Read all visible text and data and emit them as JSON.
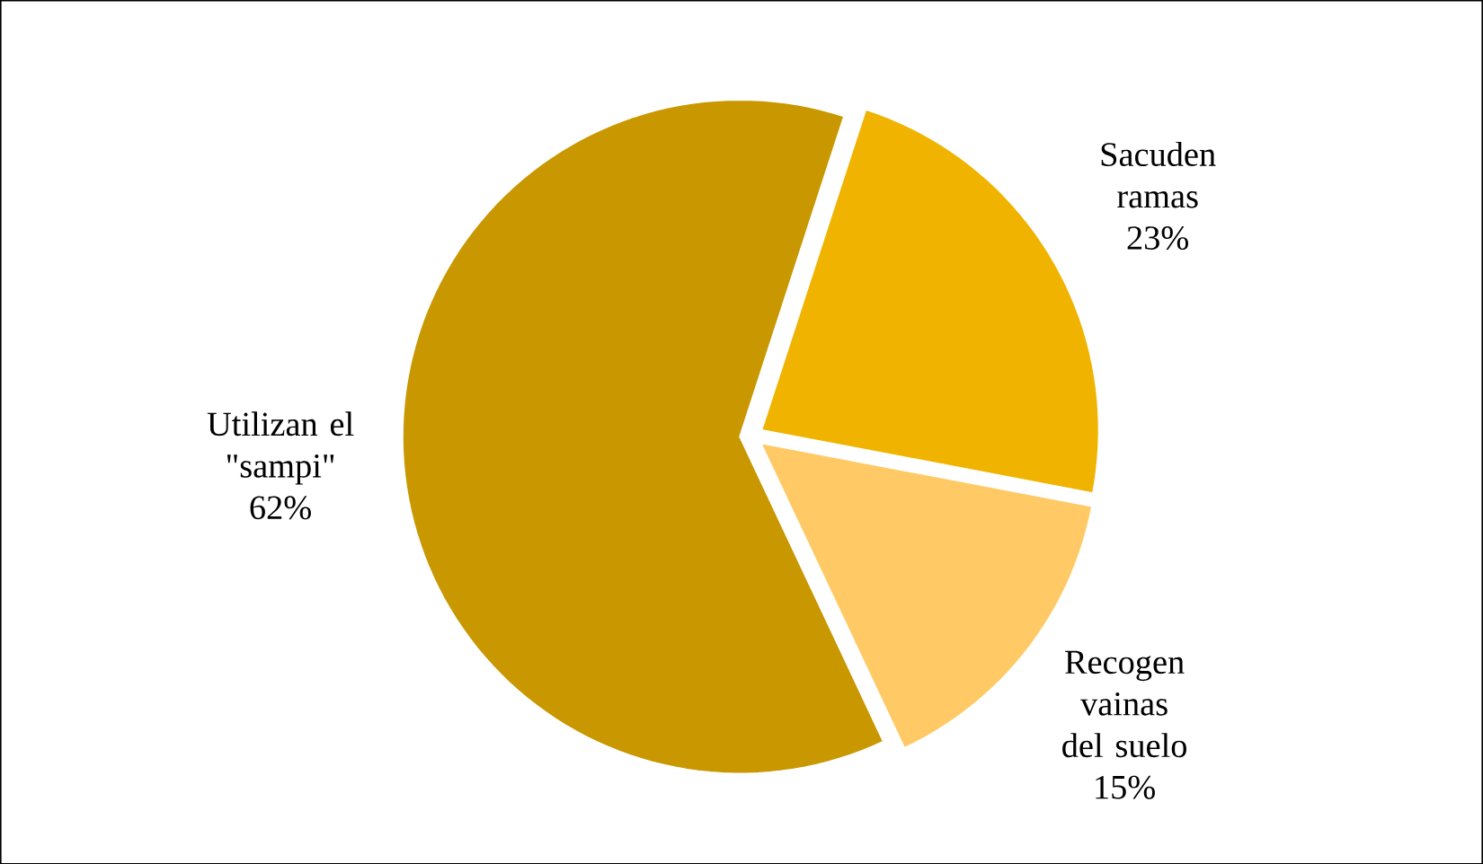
{
  "chart_data": {
    "type": "pie",
    "categories": [
      "Sacuden ramas",
      "Recogen vainas del suelo",
      "Utilizan el \"sampi\""
    ],
    "values": [
      23,
      15,
      62
    ],
    "colors": [
      "#f0b400",
      "#ffca66",
      "#c99700"
    ],
    "value_labels": [
      "23%",
      "15%",
      "62%"
    ]
  }
}
